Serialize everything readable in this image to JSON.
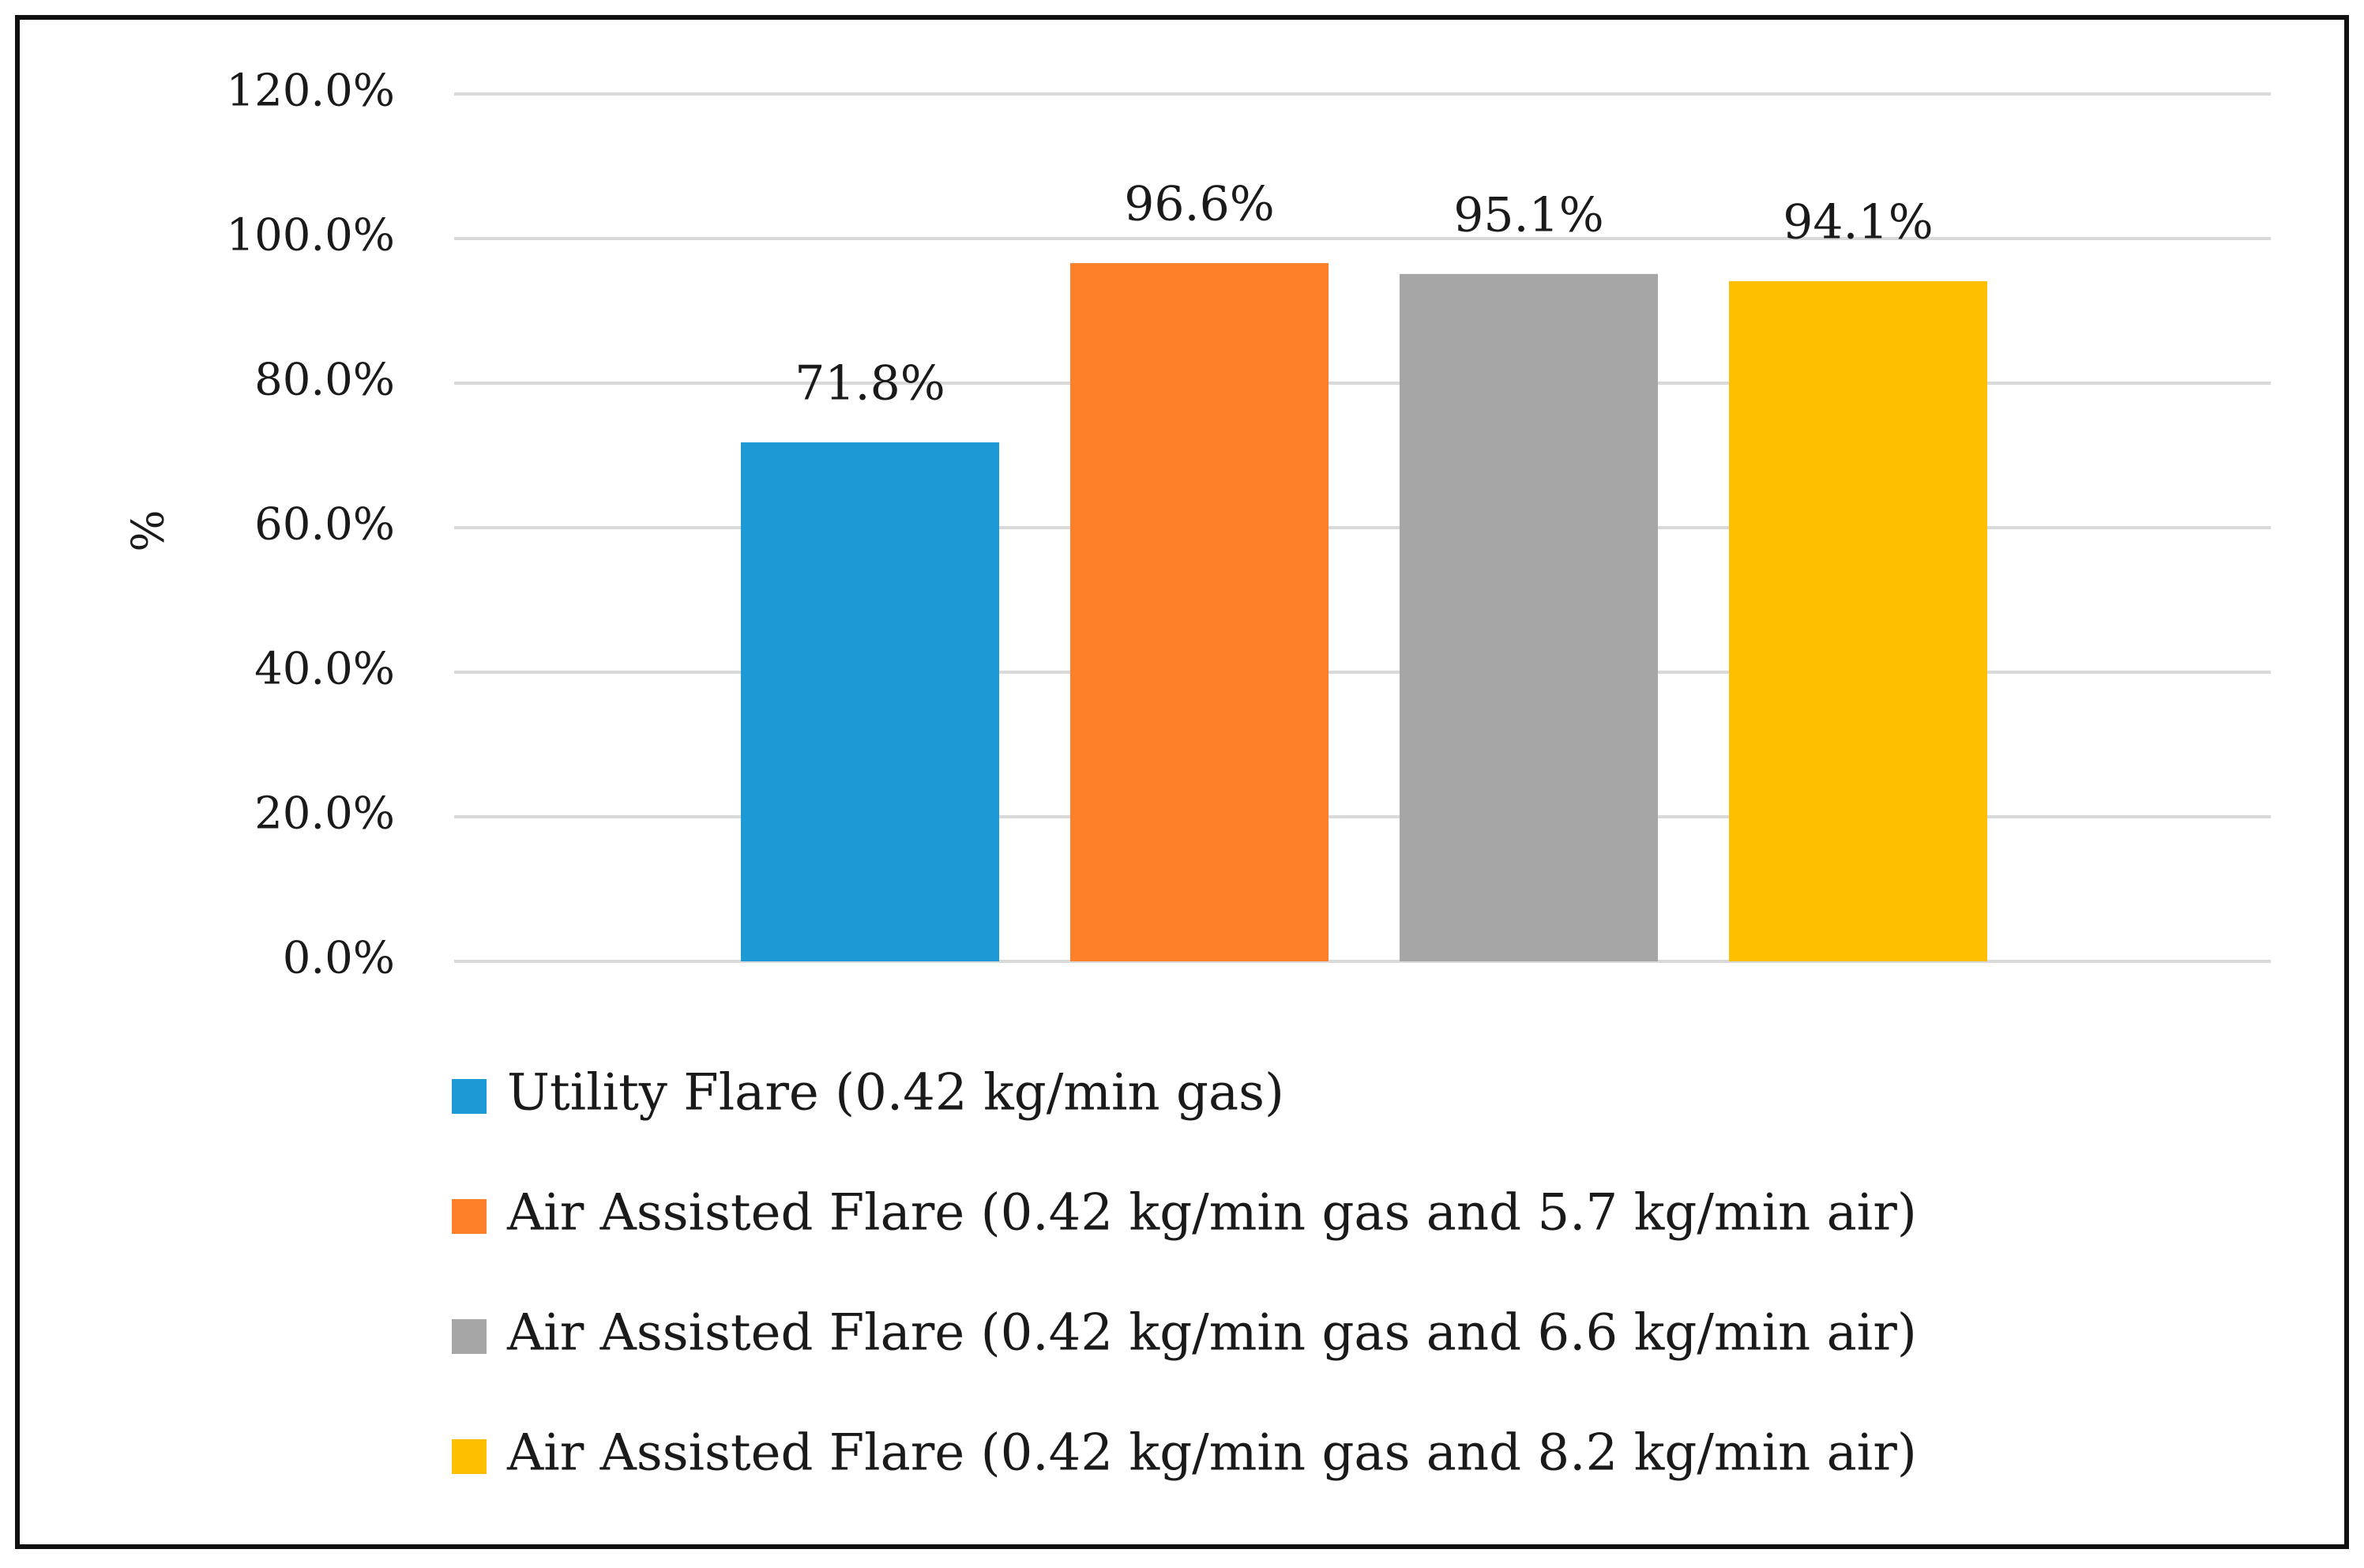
{
  "chart_data": {
    "type": "bar",
    "title": "",
    "xlabel": "",
    "ylabel": "%",
    "ylim": [
      0,
      120
    ],
    "yticks": [
      0,
      20,
      40,
      60,
      80,
      100,
      120
    ],
    "ytick_labels": [
      "0.0%",
      "20.0%",
      "40.0%",
      "60.0%",
      "80.0%",
      "100.0%",
      "120.0%"
    ],
    "grid": true,
    "legend_position": "bottom",
    "categories": [
      ""
    ],
    "series": [
      {
        "name": "Utility Flare (0.42 kg/min gas)",
        "values": [
          71.8
        ],
        "label": "71.8%",
        "color": "#1b9ad6"
      },
      {
        "name": "Air Assisted Flare (0.42 kg/min gas and 5.7 kg/min air)",
        "values": [
          96.6
        ],
        "label": "96.6%",
        "color": "#fd7f28"
      },
      {
        "name": "Air Assisted Flare (0.42 kg/min gas and 6.6 kg/min air)",
        "values": [
          95.1
        ],
        "label": "95.1%",
        "color": "#a6a6a6"
      },
      {
        "name": "Air Assisted Flare (0.42 kg/min gas and 8.2 kg/min air)",
        "values": [
          94.1
        ],
        "label": "94.1%",
        "color": "#fdbf00"
      }
    ]
  }
}
